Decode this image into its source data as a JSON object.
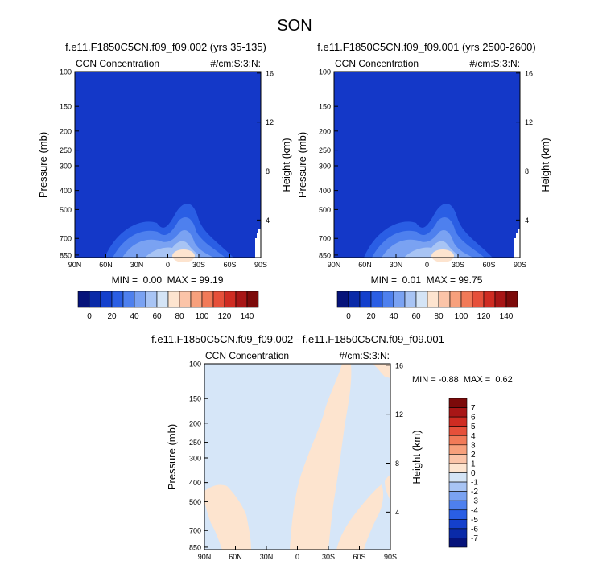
{
  "title": "SON",
  "colors": {
    "field_blue": "#1438c8",
    "diff_bg": "#d6e6f8",
    "diff_pos": "#fde4cf"
  },
  "chart_data": [
    {
      "type": "heatmap",
      "title": "f.e11.F1850C5CN.f09_f09.002 (yrs 35-135)",
      "left_label": "CCN Concentration",
      "right_label": "#/cm:S:3:N:",
      "ylabel": "Pressure (mb)",
      "ylabel_right": "Height (km)",
      "x_ticks": [
        "90N",
        "60N",
        "30N",
        "0",
        "30S",
        "60S",
        "90S"
      ],
      "y_ticks": [
        "100",
        "150",
        "200",
        "250",
        "300",
        "400",
        "500",
        "700",
        "850"
      ],
      "y_ticks_right": [
        "4",
        "8",
        "12",
        "16"
      ],
      "stats": "MIN =  0.00  MAX = 99.19",
      "min": 0.0,
      "max": 99.19
    },
    {
      "type": "heatmap",
      "title": "f.e11.F1850C5CN.f09_f09.001 (yrs 2500-2600)",
      "left_label": "CCN Concentration",
      "right_label": "#/cm:S:3:N:",
      "ylabel": "Pressure (mb)",
      "ylabel_right": "Height (km)",
      "x_ticks": [
        "90N",
        "60N",
        "30N",
        "0",
        "30S",
        "60S",
        "90S"
      ],
      "y_ticks": [
        "100",
        "150",
        "200",
        "250",
        "300",
        "400",
        "500",
        "700",
        "850"
      ],
      "y_ticks_right": [
        "4",
        "8",
        "12",
        "16"
      ],
      "stats": "MIN =  0.01  MAX = 99.75",
      "min": 0.01,
      "max": 99.75
    },
    {
      "type": "heatmap",
      "title": "f.e11.F1850C5CN.f09_f09.002 - f.e11.F1850C5CN.f09_f09.001",
      "left_label": "CCN Concentration",
      "right_label": "#/cm:S:3:N:",
      "ylabel": "Pressure (mb)",
      "ylabel_right": "Height (km)",
      "x_ticks": [
        "90N",
        "60N",
        "30N",
        "0",
        "30S",
        "60S",
        "90S"
      ],
      "y_ticks": [
        "100",
        "150",
        "200",
        "250",
        "300",
        "400",
        "500",
        "700",
        "850"
      ],
      "y_ticks_right": [
        "4",
        "8",
        "12",
        "16"
      ],
      "stats": "MIN = -0.88  MAX =  0.62",
      "min": -0.88,
      "max": 0.62
    }
  ],
  "colorbar_horizontal": {
    "labels": [
      "0",
      "20",
      "40",
      "60",
      "80",
      "100",
      "120",
      "140"
    ],
    "colors": [
      "#06137a",
      "#0a2aa8",
      "#1440cc",
      "#2a5ee4",
      "#4e80ee",
      "#7aa2f2",
      "#a8c4f4",
      "#d4e4f6",
      "#fde4cf",
      "#fbc4a8",
      "#f7a07c",
      "#f17a58",
      "#e6503a",
      "#cf2c22",
      "#a81616",
      "#7c0a0a"
    ]
  },
  "colorbar_vertical": {
    "labels": [
      "7",
      "6",
      "5",
      "4",
      "3",
      "2",
      "1",
      "0",
      "-1",
      "-2",
      "-3",
      "-4",
      "-5",
      "-6",
      "-7"
    ],
    "colors": [
      "#7c0a0a",
      "#a81616",
      "#cf2c22",
      "#e6503a",
      "#f17a58",
      "#f7a07c",
      "#fbc4a8",
      "#fde4cf",
      "#d4e4f6",
      "#a8c4f4",
      "#7aa2f2",
      "#4e80ee",
      "#2a5ee4",
      "#1440cc",
      "#0a2aa8",
      "#06137a"
    ]
  }
}
